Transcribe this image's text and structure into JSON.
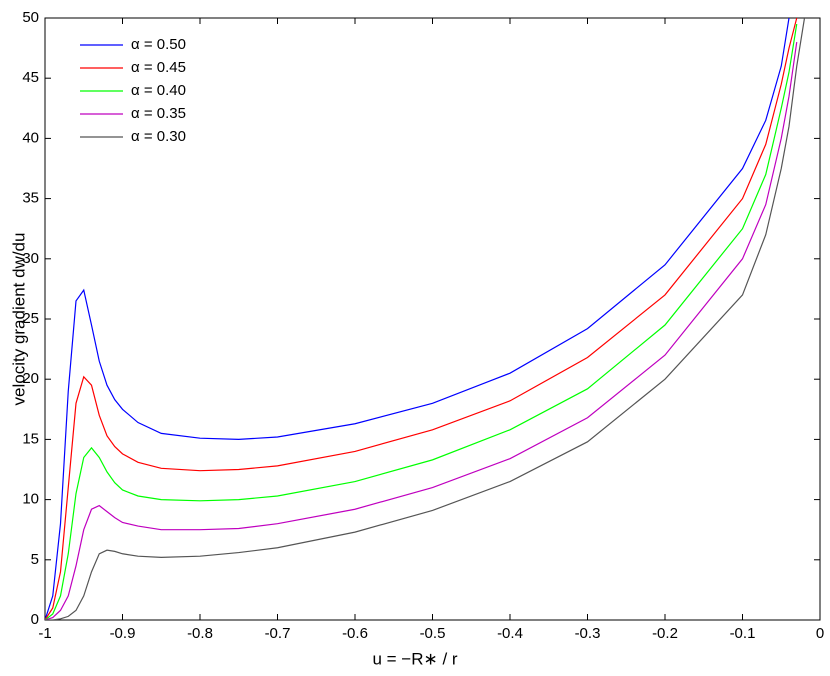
{
  "chart_data": {
    "type": "line",
    "xlabel": "u = −R∗ / r",
    "ylabel": "velocity gradient dw/du",
    "x": [
      -1,
      -0.99,
      -0.98,
      -0.97,
      -0.96,
      -0.95,
      -0.94,
      -0.93,
      -0.92,
      -0.91,
      -0.9,
      -0.88,
      -0.85,
      -0.8,
      -0.75,
      -0.7,
      -0.6,
      -0.5,
      -0.4,
      -0.3,
      -0.2,
      -0.1,
      -0.07,
      -0.05,
      -0.04,
      -0.03,
      -0.02
    ],
    "series": [
      {
        "name": "α = 0.50",
        "color": "#0000ff",
        "values": [
          0,
          2,
          8,
          19,
          26.5,
          27.4,
          24.5,
          21.5,
          19.5,
          18.3,
          17.5,
          16.4,
          15.5,
          15.1,
          15,
          15.2,
          16.3,
          18,
          20.5,
          24.2,
          29.5,
          37.5,
          41.5,
          46,
          50,
          null,
          null
        ]
      },
      {
        "name": "α = 0.45",
        "color": "#ff0000",
        "values": [
          0,
          1,
          4,
          11,
          18,
          20.2,
          19.5,
          17,
          15.3,
          14.4,
          13.8,
          13.1,
          12.6,
          12.4,
          12.5,
          12.8,
          14,
          15.8,
          18.2,
          21.8,
          27,
          35,
          39.5,
          44.5,
          47.5,
          50,
          null
        ]
      },
      {
        "name": "α = 0.40",
        "color": "#00ff00",
        "values": [
          0,
          0.5,
          2,
          5.5,
          10.5,
          13.5,
          14.3,
          13.5,
          12.3,
          11.4,
          10.8,
          10.3,
          10,
          9.9,
          10,
          10.3,
          11.5,
          13.3,
          15.8,
          19.2,
          24.5,
          32.5,
          37,
          42.5,
          45.5,
          49.5,
          null
        ]
      },
      {
        "name": "α = 0.35",
        "color": "#bf00bf",
        "values": [
          0,
          0.2,
          0.8,
          2,
          4.5,
          7.5,
          9.2,
          9.5,
          9,
          8.5,
          8.1,
          7.8,
          7.5,
          7.5,
          7.6,
          8,
          9.2,
          11,
          13.4,
          16.8,
          22,
          30,
          34.5,
          40,
          43.5,
          48,
          null
        ]
      },
      {
        "name": "α = 0.30",
        "color": "#555555",
        "values": [
          0,
          0,
          0.1,
          0.3,
          0.8,
          2,
          4,
          5.5,
          5.8,
          5.7,
          5.5,
          5.3,
          5.2,
          5.3,
          5.6,
          6,
          7.3,
          9.1,
          11.5,
          14.8,
          20,
          27,
          32,
          37.5,
          41,
          46,
          50
        ]
      }
    ],
    "xlim": [
      -1,
      0
    ],
    "xticks": [
      -1,
      -0.9,
      -0.8,
      -0.7,
      -0.6,
      -0.5,
      -0.4,
      -0.3,
      -0.2,
      -0.1,
      0
    ],
    "ylim": [
      0,
      50
    ],
    "yticks": [
      0,
      5,
      10,
      15,
      20,
      25,
      30,
      35,
      40,
      45,
      50
    ],
    "legend": "upper left",
    "grid": false
  }
}
